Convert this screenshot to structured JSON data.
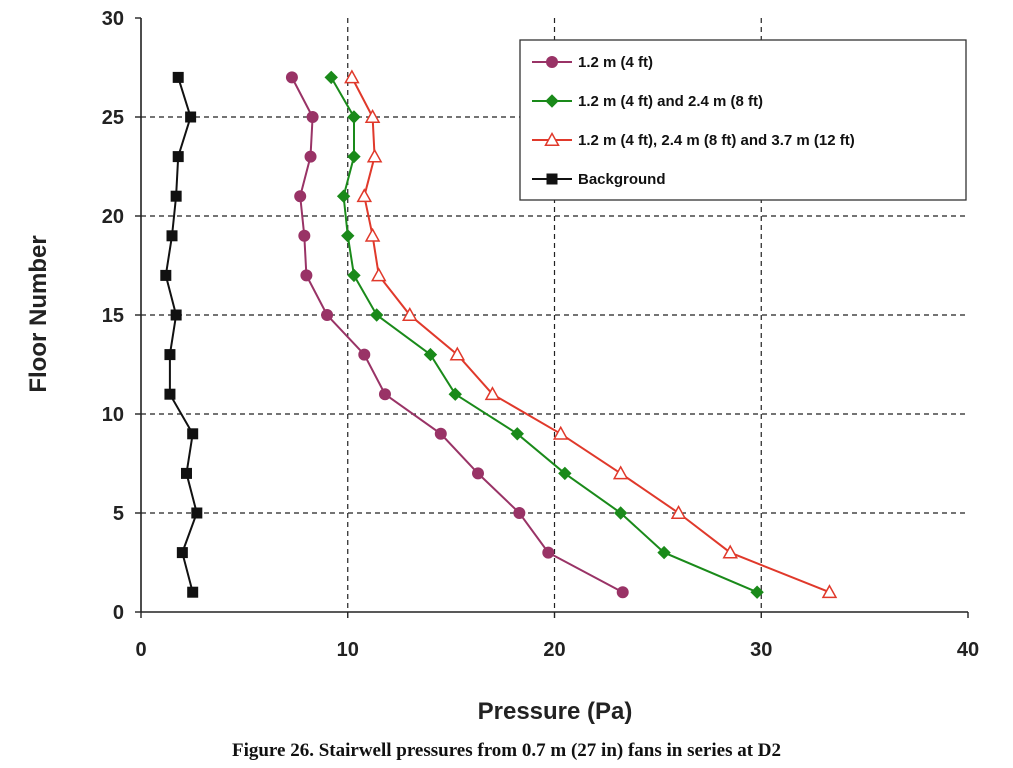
{
  "caption": "Figure 26.  Stairwell pressures from 0.7 m (27 in) fans in series at D2",
  "chart_data": {
    "type": "line",
    "orientation": "x-pressure-y-floor",
    "xlabel": "Pressure (Pa)",
    "ylabel": "Floor Number",
    "xlim": [
      0,
      40
    ],
    "ylim": [
      0,
      30
    ],
    "xticks": [
      0,
      10,
      20,
      30,
      40
    ],
    "yticks": [
      0,
      5,
      10,
      15,
      20,
      25,
      30
    ],
    "grid": "dashed at major ticks",
    "legend_position": "top-right",
    "series": [
      {
        "name": "1.2 m (4 ft)",
        "color": "#993366",
        "marker": "circle",
        "points": [
          [
            7.3,
            27
          ],
          [
            8.3,
            25
          ],
          [
            8.2,
            23
          ],
          [
            7.7,
            21
          ],
          [
            7.9,
            19
          ],
          [
            8.0,
            17
          ],
          [
            9.0,
            15
          ],
          [
            10.8,
            13
          ],
          [
            11.8,
            11
          ],
          [
            14.5,
            9
          ],
          [
            16.3,
            7
          ],
          [
            18.3,
            5
          ],
          [
            19.7,
            3
          ],
          [
            23.3,
            1
          ]
        ]
      },
      {
        "name": "1.2 m (4 ft) and 2.4 m (8 ft)",
        "color": "#1a8a1a",
        "marker": "diamond",
        "points": [
          [
            9.2,
            27
          ],
          [
            10.3,
            25
          ],
          [
            10.3,
            23
          ],
          [
            9.8,
            21
          ],
          [
            10.0,
            19
          ],
          [
            10.3,
            17
          ],
          [
            11.4,
            15
          ],
          [
            14.0,
            13
          ],
          [
            15.2,
            11
          ],
          [
            18.2,
            9
          ],
          [
            20.5,
            7
          ],
          [
            23.2,
            5
          ],
          [
            25.3,
            3
          ],
          [
            29.8,
            1
          ]
        ]
      },
      {
        "name": "1.2 m (4 ft), 2.4 m (8 ft) and 3.7 m (12 ft)",
        "color": "#e0392b",
        "marker": "triangle",
        "points": [
          [
            10.2,
            27
          ],
          [
            11.2,
            25
          ],
          [
            11.3,
            23
          ],
          [
            10.8,
            21
          ],
          [
            11.2,
            19
          ],
          [
            11.5,
            17
          ],
          [
            13.0,
            15
          ],
          [
            15.3,
            13
          ],
          [
            17.0,
            11
          ],
          [
            20.3,
            9
          ],
          [
            23.2,
            7
          ],
          [
            26.0,
            5
          ],
          [
            28.5,
            3
          ],
          [
            33.3,
            1
          ]
        ]
      },
      {
        "name": "Background",
        "color": "#111111",
        "marker": "square",
        "points": [
          [
            1.8,
            27
          ],
          [
            2.4,
            25
          ],
          [
            1.8,
            23
          ],
          [
            1.7,
            21
          ],
          [
            1.5,
            19
          ],
          [
            1.2,
            17
          ],
          [
            1.7,
            15
          ],
          [
            1.4,
            13
          ],
          [
            1.4,
            11
          ],
          [
            2.5,
            9
          ],
          [
            2.2,
            7
          ],
          [
            2.7,
            5
          ],
          [
            2.0,
            3
          ],
          [
            2.5,
            1
          ]
        ]
      }
    ]
  }
}
